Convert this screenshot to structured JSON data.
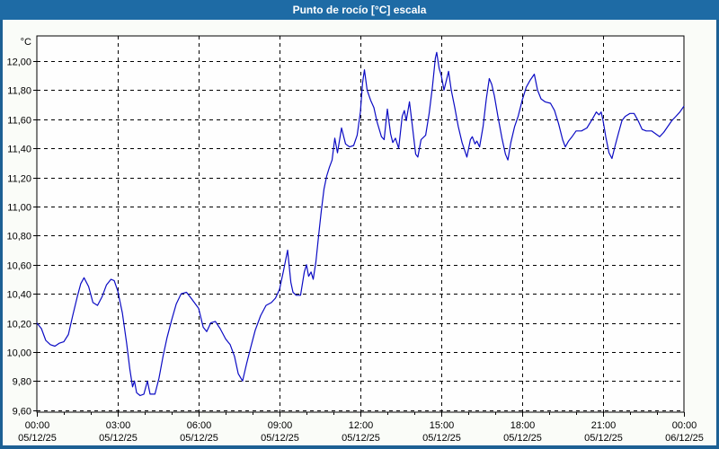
{
  "window": {
    "title": "Punto de rocío [°C] escala",
    "colors": {
      "titlebar": "#1e6ba5",
      "titlebar_text": "#ffffff",
      "window_bg": "#fafcf8",
      "border": "#1c6094",
      "plot_bg": "#fefefe",
      "grid": "#000000",
      "axis": "#000000",
      "line": "#0b0bc4",
      "label": "#000000"
    }
  },
  "chart_data": {
    "type": "line",
    "title": "Punto de rocío [°C] escala",
    "ylabel": "°C",
    "unit_label": "°C",
    "ylim": [
      9.586,
      12.173
    ],
    "xlim_hours": [
      0,
      24
    ],
    "grid": "dashed",
    "legend": "none",
    "y_ticks": [
      {
        "label": "12,00",
        "value": 12.0
      },
      {
        "label": "11,80",
        "value": 11.8
      },
      {
        "label": "11,60",
        "value": 11.6
      },
      {
        "label": "11,40",
        "value": 11.4
      },
      {
        "label": "11,20",
        "value": 11.2
      },
      {
        "label": "11,00",
        "value": 11.0
      },
      {
        "label": "10,80",
        "value": 10.8
      },
      {
        "label": "10,60",
        "value": 10.6
      },
      {
        "label": "10,40",
        "value": 10.4
      },
      {
        "label": "10,20",
        "value": 10.2
      },
      {
        "label": "10,00",
        "value": 10.0
      },
      {
        "label": "9,80",
        "value": 9.8
      },
      {
        "label": "9,60",
        "value": 9.6
      }
    ],
    "x_ticks": [
      {
        "time": "00:00",
        "date": "05/12/25",
        "hour": 0
      },
      {
        "time": "03:00",
        "date": "05/12/25",
        "hour": 3
      },
      {
        "time": "06:00",
        "date": "05/12/25",
        "hour": 6
      },
      {
        "time": "09:00",
        "date": "05/12/25",
        "hour": 9
      },
      {
        "time": "12:00",
        "date": "05/12/25",
        "hour": 12
      },
      {
        "time": "15:00",
        "date": "05/12/25",
        "hour": 15
      },
      {
        "time": "18:00",
        "date": "05/12/25",
        "hour": 18
      },
      {
        "time": "21:00",
        "date": "05/12/25",
        "hour": 21
      },
      {
        "time": "00:00",
        "date": "06/12/25",
        "hour": 24
      }
    ],
    "minor_tick_hours": 1,
    "series": [
      {
        "name": "punto-de-rocio",
        "color": "#0b0bc4",
        "points": [
          [
            0,
            10.2
          ],
          [
            0.17,
            10.16
          ],
          [
            0.33,
            10.08
          ],
          [
            0.5,
            10.05
          ],
          [
            0.67,
            10.04
          ],
          [
            0.83,
            10.06
          ],
          [
            1,
            10.07
          ],
          [
            1.17,
            10.12
          ],
          [
            1.33,
            10.25
          ],
          [
            1.5,
            10.38
          ],
          [
            1.63,
            10.47
          ],
          [
            1.75,
            10.51
          ],
          [
            1.92,
            10.45
          ],
          [
            2.08,
            10.34
          ],
          [
            2.25,
            10.32
          ],
          [
            2.42,
            10.38
          ],
          [
            2.58,
            10.46
          ],
          [
            2.75,
            10.5
          ],
          [
            2.87,
            10.49
          ],
          [
            3,
            10.42
          ],
          [
            3.17,
            10.27
          ],
          [
            3.33,
            10.06
          ],
          [
            3.45,
            9.88
          ],
          [
            3.55,
            9.76
          ],
          [
            3.62,
            9.8
          ],
          [
            3.7,
            9.72
          ],
          [
            3.83,
            9.7
          ],
          [
            3.97,
            9.71
          ],
          [
            4.1,
            9.8
          ],
          [
            4.2,
            9.71
          ],
          [
            4.38,
            9.71
          ],
          [
            4.53,
            9.82
          ],
          [
            4.68,
            9.97
          ],
          [
            4.83,
            10.1
          ],
          [
            5,
            10.22
          ],
          [
            5.17,
            10.33
          ],
          [
            5.35,
            10.4
          ],
          [
            5.55,
            10.41
          ],
          [
            5.72,
            10.37
          ],
          [
            5.88,
            10.33
          ],
          [
            6,
            10.3
          ],
          [
            6.17,
            10.17
          ],
          [
            6.3,
            10.14
          ],
          [
            6.45,
            10.2
          ],
          [
            6.62,
            10.21
          ],
          [
            6.8,
            10.16
          ],
          [
            7,
            10.09
          ],
          [
            7.17,
            10.05
          ],
          [
            7.33,
            9.97
          ],
          [
            7.47,
            9.85
          ],
          [
            7.63,
            9.8
          ],
          [
            7.78,
            9.92
          ],
          [
            7.93,
            10.03
          ],
          [
            8.1,
            10.15
          ],
          [
            8.3,
            10.25
          ],
          [
            8.5,
            10.32
          ],
          [
            8.7,
            10.34
          ],
          [
            8.85,
            10.37
          ],
          [
            9,
            10.43
          ],
          [
            9.15,
            10.56
          ],
          [
            9.3,
            10.7
          ],
          [
            9.42,
            10.48
          ],
          [
            9.5,
            10.41
          ],
          [
            9.62,
            10.39
          ],
          [
            9.78,
            10.39
          ],
          [
            9.92,
            10.55
          ],
          [
            10,
            10.6
          ],
          [
            10.08,
            10.52
          ],
          [
            10.17,
            10.55
          ],
          [
            10.25,
            10.5
          ],
          [
            10.35,
            10.62
          ],
          [
            10.45,
            10.8
          ],
          [
            10.55,
            10.97
          ],
          [
            10.65,
            11.12
          ],
          [
            10.75,
            11.21
          ],
          [
            10.85,
            11.27
          ],
          [
            10.95,
            11.32
          ],
          [
            11.05,
            11.47
          ],
          [
            11.15,
            11.37
          ],
          [
            11.3,
            11.54
          ],
          [
            11.45,
            11.43
          ],
          [
            11.6,
            11.41
          ],
          [
            11.75,
            11.42
          ],
          [
            11.88,
            11.49
          ],
          [
            12,
            11.65
          ],
          [
            12.08,
            11.85
          ],
          [
            12.15,
            11.94
          ],
          [
            12.25,
            11.8
          ],
          [
            12.38,
            11.73
          ],
          [
            12.5,
            11.68
          ],
          [
            12.62,
            11.58
          ],
          [
            12.78,
            11.48
          ],
          [
            12.88,
            11.46
          ],
          [
            13,
            11.67
          ],
          [
            13.12,
            11.5
          ],
          [
            13.2,
            11.44
          ],
          [
            13.3,
            11.47
          ],
          [
            13.42,
            11.4
          ],
          [
            13.55,
            11.62
          ],
          [
            13.63,
            11.66
          ],
          [
            13.7,
            11.59
          ],
          [
            13.82,
            11.72
          ],
          [
            13.93,
            11.55
          ],
          [
            14.05,
            11.36
          ],
          [
            14.13,
            11.34
          ],
          [
            14.25,
            11.46
          ],
          [
            14.42,
            11.49
          ],
          [
            14.55,
            11.64
          ],
          [
            14.67,
            11.82
          ],
          [
            14.78,
            12.02
          ],
          [
            14.83,
            12.06
          ],
          [
            14.92,
            11.95
          ],
          [
            15,
            11.9
          ],
          [
            15.1,
            11.8
          ],
          [
            15.18,
            11.86
          ],
          [
            15.27,
            11.93
          ],
          [
            15.37,
            11.8
          ],
          [
            15.5,
            11.68
          ],
          [
            15.63,
            11.55
          ],
          [
            15.77,
            11.44
          ],
          [
            15.95,
            11.34
          ],
          [
            16.08,
            11.46
          ],
          [
            16.15,
            11.48
          ],
          [
            16.25,
            11.43
          ],
          [
            16.32,
            11.45
          ],
          [
            16.42,
            11.41
          ],
          [
            16.55,
            11.55
          ],
          [
            16.67,
            11.74
          ],
          [
            16.78,
            11.88
          ],
          [
            16.87,
            11.84
          ],
          [
            16.97,
            11.76
          ],
          [
            17.1,
            11.62
          ],
          [
            17.25,
            11.47
          ],
          [
            17.38,
            11.36
          ],
          [
            17.47,
            11.32
          ],
          [
            17.58,
            11.44
          ],
          [
            17.72,
            11.55
          ],
          [
            17.85,
            11.62
          ],
          [
            18,
            11.73
          ],
          [
            18.15,
            11.82
          ],
          [
            18.3,
            11.87
          ],
          [
            18.45,
            11.91
          ],
          [
            18.57,
            11.8
          ],
          [
            18.7,
            11.74
          ],
          [
            18.85,
            11.72
          ],
          [
            19.05,
            11.71
          ],
          [
            19.2,
            11.66
          ],
          [
            19.35,
            11.57
          ],
          [
            19.5,
            11.46
          ],
          [
            19.6,
            11.41
          ],
          [
            19.72,
            11.45
          ],
          [
            19.85,
            11.48
          ],
          [
            20,
            11.52
          ],
          [
            20.2,
            11.52
          ],
          [
            20.4,
            11.54
          ],
          [
            20.6,
            11.6
          ],
          [
            20.75,
            11.65
          ],
          [
            20.85,
            11.63
          ],
          [
            20.93,
            11.65
          ],
          [
            21,
            11.59
          ],
          [
            21.1,
            11.48
          ],
          [
            21.22,
            11.37
          ],
          [
            21.33,
            11.33
          ],
          [
            21.45,
            11.42
          ],
          [
            21.58,
            11.51
          ],
          [
            21.7,
            11.59
          ],
          [
            21.82,
            11.62
          ],
          [
            22,
            11.64
          ],
          [
            22.15,
            11.64
          ],
          [
            22.3,
            11.59
          ],
          [
            22.45,
            11.53
          ],
          [
            22.6,
            11.52
          ],
          [
            22.8,
            11.52
          ],
          [
            22.95,
            11.5
          ],
          [
            23.1,
            11.48
          ],
          [
            23.25,
            11.51
          ],
          [
            23.4,
            11.55
          ],
          [
            23.55,
            11.59
          ],
          [
            23.7,
            11.62
          ],
          [
            23.85,
            11.65
          ],
          [
            24,
            11.69
          ]
        ]
      }
    ]
  }
}
